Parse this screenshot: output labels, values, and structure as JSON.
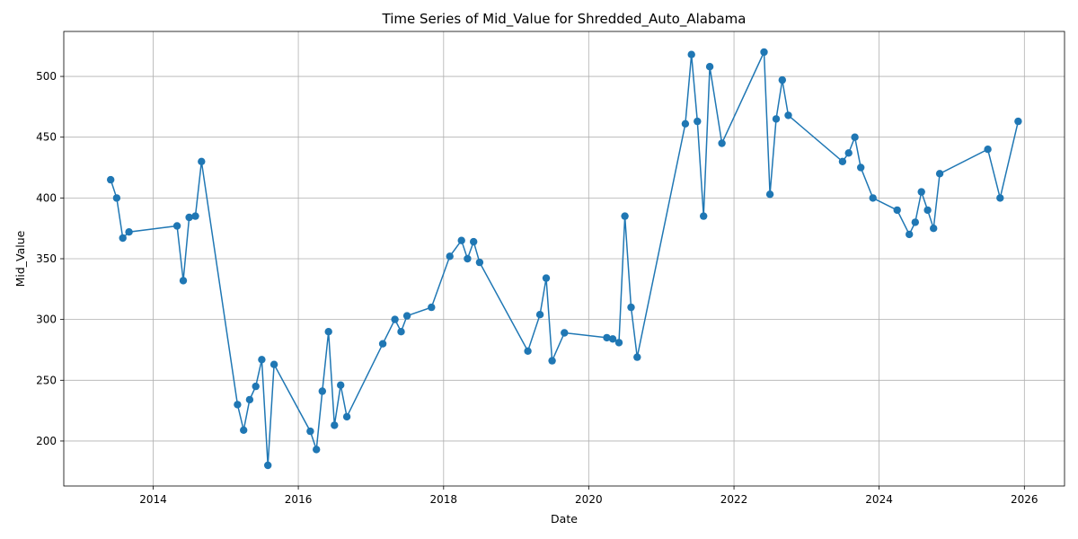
{
  "chart_data": {
    "type": "line",
    "title": "Time Series of Mid_Value for Shredded_Auto_Alabama",
    "xlabel": "Date",
    "ylabel": "Mid_Value",
    "grid": true,
    "marker": "circle",
    "color": "#1f77b4",
    "xlim": [
      "2012-10-08",
      "2026-07-22"
    ],
    "ylim": [
      163,
      537
    ],
    "x_ticks": [
      "2014",
      "2016",
      "2018",
      "2020",
      "2022",
      "2024",
      "2026"
    ],
    "y_ticks": [
      "200",
      "250",
      "300",
      "350",
      "400",
      "450",
      "500"
    ],
    "series": [
      {
        "x": [
          "2013-06-01",
          "2013-07-01",
          "2013-08-01",
          "2013-09-01",
          "2014-05-01",
          "2014-06-01",
          "2014-07-01",
          "2014-08-01",
          "2014-09-01",
          "2015-03-01",
          "2015-04-01",
          "2015-05-01",
          "2015-06-01",
          "2015-07-01",
          "2015-08-01",
          "2015-09-01",
          "2016-03-01",
          "2016-04-01",
          "2016-05-01",
          "2016-06-01",
          "2016-07-01",
          "2016-08-01",
          "2016-09-01",
          "2017-03-01",
          "2017-05-01",
          "2017-06-01",
          "2017-07-01",
          "2017-11-01",
          "2018-02-01",
          "2018-04-01",
          "2018-05-01",
          "2018-06-01",
          "2018-07-01",
          "2019-03-01",
          "2019-05-01",
          "2019-06-01",
          "2019-07-01",
          "2019-09-01",
          "2020-04-01",
          "2020-05-01",
          "2020-06-01",
          "2020-07-01",
          "2020-08-01",
          "2020-09-01",
          "2021-05-01",
          "2021-06-01",
          "2021-07-01",
          "2021-08-01",
          "2021-09-01",
          "2021-11-01",
          "2022-06-01",
          "2022-07-01",
          "2022-08-01",
          "2022-09-01",
          "2022-10-01",
          "2023-07-01",
          "2023-08-01",
          "2023-09-01",
          "2023-10-01",
          "2023-12-01",
          "2024-04-01",
          "2024-06-01",
          "2024-07-01",
          "2024-08-01",
          "2024-09-01",
          "2024-10-01",
          "2024-11-01",
          "2025-07-01",
          "2025-09-01",
          "2025-12-01"
        ],
        "y": [
          415,
          400,
          367,
          372,
          377,
          332,
          384,
          385,
          430,
          230,
          209,
          234,
          245,
          267,
          180,
          263,
          208,
          193,
          241,
          290,
          213,
          246,
          220,
          280,
          300,
          290,
          303,
          310,
          352,
          365,
          350,
          364,
          347,
          274,
          304,
          334,
          266,
          289,
          285,
          284,
          281,
          385,
          310,
          269,
          461,
          518,
          463,
          385,
          508,
          445,
          520,
          403,
          465,
          497,
          468,
          430,
          437,
          450,
          425,
          400,
          390,
          370,
          380,
          405,
          390,
          375,
          420,
          440,
          400,
          463
        ]
      }
    ]
  }
}
